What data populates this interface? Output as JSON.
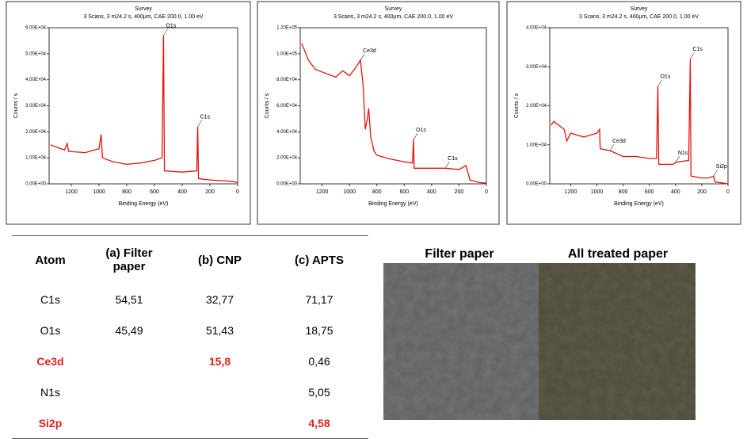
{
  "chart_data": [
    {
      "type": "line",
      "title": "Survey",
      "subtitle": "3 Scans, 3 m24.2 s, 400µm, CAE 200.0, 1.00 eV",
      "xlabel": "Binding Energy (eV)",
      "ylabel": "Counts / s",
      "color": "#e8120c",
      "x": [
        1350,
        1300,
        1250,
        1230,
        1220,
        1100,
        1000,
        985,
        975,
        900,
        800,
        700,
        600,
        545,
        535,
        528,
        400,
        295,
        288,
        282,
        200,
        100,
        50,
        0
      ],
      "values": [
        15000,
        14000,
        13000,
        15500,
        12500,
        12000,
        13500,
        19000,
        10000,
        8500,
        7500,
        8000,
        9000,
        10000,
        57000,
        5000,
        4500,
        5000,
        22000,
        2000,
        1500,
        1200,
        1000,
        500
      ],
      "xlim": [
        1360,
        0
      ],
      "xticks": [
        1200,
        1000,
        800,
        600,
        400,
        200,
        0
      ],
      "ylim": [
        0,
        60000
      ],
      "yticks": [
        {
          "value": 0,
          "label": "0.00E+00"
        },
        {
          "value": 10000,
          "label": "1.00E+04"
        },
        {
          "value": 20000,
          "label": "2.00E+04"
        },
        {
          "value": 30000,
          "label": "3.00E+04"
        },
        {
          "value": 40000,
          "label": "4.00E+04"
        },
        {
          "value": 50000,
          "label": "5.00E+04"
        },
        {
          "value": 60000,
          "label": "6.00E+04"
        }
      ],
      "annotations": [
        {
          "text": "O1s",
          "x": 535,
          "y": 57000
        },
        {
          "text": "C1s",
          "x": 288,
          "y": 22000
        }
      ]
    },
    {
      "type": "line",
      "title": "Survey",
      "subtitle": "3 Scans, 3 m24.2 s, 400µm, CAE 200.0, 1.00 eV",
      "xlabel": "Binding Energy (eV)",
      "ylabel": "Counts / s",
      "color": "#e8120c",
      "x": [
        1350,
        1330,
        1300,
        1250,
        1200,
        1100,
        1050,
        1000,
        950,
        920,
        900,
        885,
        870,
        860,
        845,
        820,
        800,
        700,
        600,
        540,
        532,
        528,
        400,
        300,
        200,
        150,
        120,
        50,
        0
      ],
      "values": [
        108000,
        103000,
        95000,
        88000,
        86000,
        82000,
        87000,
        83000,
        90000,
        95000,
        75000,
        42000,
        50000,
        58000,
        36000,
        25000,
        22000,
        19000,
        17000,
        16000,
        34000,
        12000,
        12000,
        12000,
        11000,
        14000,
        3000,
        1000,
        500
      ],
      "xlim": [
        1360,
        0
      ],
      "xticks": [
        1200,
        1000,
        800,
        600,
        400,
        200,
        0
      ],
      "ylim": [
        0,
        120000
      ],
      "yticks": [
        {
          "value": 0,
          "label": "0.00E+00"
        },
        {
          "value": 20000,
          "label": "2.00E+04"
        },
        {
          "value": 40000,
          "label": "4.00E+04"
        },
        {
          "value": 60000,
          "label": "6.00E+04"
        },
        {
          "value": 80000,
          "label": "8.00E+04"
        },
        {
          "value": 100000,
          "label": "1.00E+05"
        },
        {
          "value": 120000,
          "label": "1.20E+05"
        }
      ],
      "annotations": [
        {
          "text": "Ce3d",
          "x": 920,
          "y": 95000
        },
        {
          "text": "O1s",
          "x": 532,
          "y": 34000
        },
        {
          "text": "C1s",
          "x": 300,
          "y": 12000
        }
      ]
    },
    {
      "type": "line",
      "title": "Survey",
      "subtitle": "3 Scans, 3 m24.2 s, 400µm, CAE 200.0, 1.00 eV",
      "xlabel": "Binding Energy (eV)",
      "ylabel": "Counts / s",
      "color": "#e8120c",
      "x": [
        1350,
        1330,
        1250,
        1230,
        1200,
        1100,
        1000,
        980,
        975,
        900,
        800,
        700,
        600,
        545,
        535,
        528,
        420,
        400,
        300,
        288,
        282,
        200,
        150,
        110,
        100,
        0
      ],
      "values": [
        15000,
        16000,
        14000,
        11000,
        13000,
        12000,
        13000,
        14000,
        9000,
        8500,
        7000,
        7000,
        6500,
        6500,
        25000,
        5000,
        5000,
        5500,
        6000,
        32000,
        2000,
        1500,
        1500,
        2000,
        500,
        0
      ],
      "xlim": [
        1360,
        0
      ],
      "xticks": [
        1200,
        1000,
        800,
        600,
        400,
        200,
        0
      ],
      "ylim": [
        0,
        40000
      ],
      "yticks": [
        {
          "value": 0,
          "label": "0.00E+00"
        },
        {
          "value": 10000,
          "label": "1.00E+04"
        },
        {
          "value": 20000,
          "label": "2.00E+04"
        },
        {
          "value": 30000,
          "label": "3.00E+04"
        },
        {
          "value": 40000,
          "label": "4.00E+04"
        }
      ],
      "annotations": [
        {
          "text": "O1s",
          "x": 535,
          "y": 25000
        },
        {
          "text": "C1s",
          "x": 288,
          "y": 32000
        },
        {
          "text": "Ce3d",
          "x": 900,
          "y": 8500
        },
        {
          "text": "N1s",
          "x": 400,
          "y": 5500
        },
        {
          "text": "Si2p",
          "x": 110,
          "y": 2000
        }
      ]
    }
  ],
  "table": {
    "header": [
      "Atom",
      "(a) Filter paper",
      "(b) CNP",
      "(c) APTS"
    ],
    "rows": [
      [
        "C1s",
        "54,51",
        "32,77",
        "71,17"
      ],
      [
        "O1s",
        "45,49",
        "51,43",
        "18,75"
      ],
      [
        "Ce3d",
        null,
        "15,8",
        "0,46"
      ],
      [
        "N1s",
        null,
        null,
        "5,05"
      ],
      [
        "Si2p",
        null,
        null,
        "4,58"
      ]
    ]
  },
  "photo": {
    "labels": [
      "Filter paper",
      "All  treated paper"
    ]
  }
}
